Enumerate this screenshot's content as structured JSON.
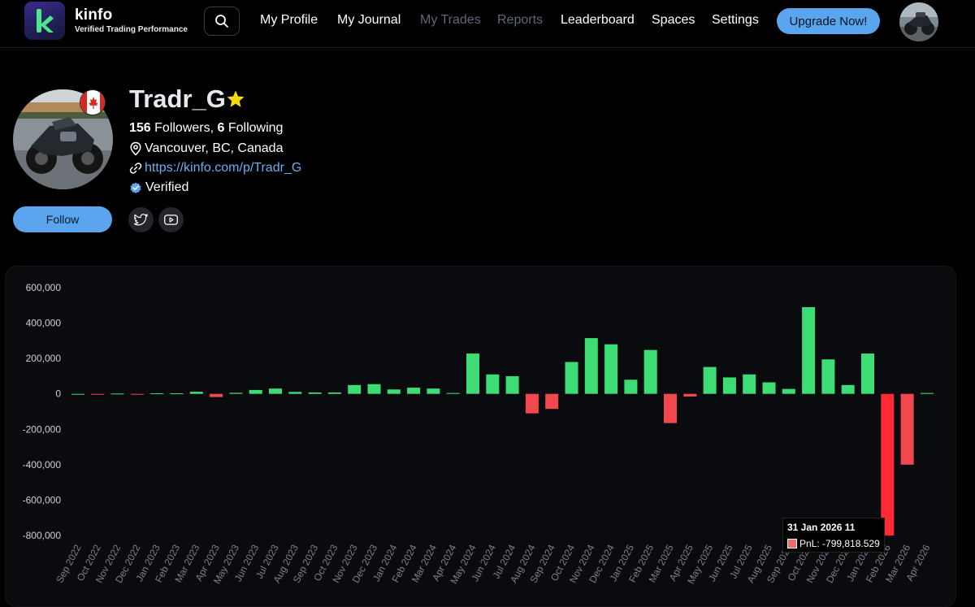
{
  "brand": {
    "name": "kinfo",
    "tagline": "Verified Trading Performance"
  },
  "nav": {
    "items": [
      {
        "label": "My Profile",
        "dim": false
      },
      {
        "label": "My Journal",
        "dim": false
      },
      {
        "label": "My Trades",
        "dim": true
      },
      {
        "label": "Reports",
        "dim": true
      },
      {
        "label": "Leaderboard",
        "dim": false
      },
      {
        "label": "Spaces",
        "dim": false
      },
      {
        "label": "Settings",
        "dim": false
      }
    ],
    "upgrade_label": "Upgrade Now!"
  },
  "profile": {
    "username": "Tradr_G",
    "followers_count": "156",
    "followers_label": " Followers, ",
    "following_count": "6",
    "following_label": " Following",
    "location": "Vancouver, BC, Canada",
    "url": "https://kinfo.com/p/Tradr_G",
    "verified_label": "Verified",
    "follow_label": "Follow"
  },
  "colors": {
    "accent": "#5aa5ee",
    "positive": "#3ddc75",
    "negative": "#f1474f",
    "highlight_negative": "#ff2a34"
  },
  "icons": [
    "search-icon",
    "star-icon",
    "location-pin-icon",
    "link-icon",
    "verified-badge-icon",
    "twitter-icon",
    "youtube-icon",
    "canada-flag-icon"
  ],
  "tooltip": {
    "title": "31 Jan 2026 11",
    "text": "PnL: -799,818.529"
  },
  "chart_data": {
    "type": "bar",
    "series": [
      {
        "name": "PnL"
      }
    ],
    "ylim": [
      -800000,
      600000
    ],
    "yticks": [
      600000,
      400000,
      200000,
      0,
      -200000,
      -400000,
      -600000,
      -800000
    ],
    "ytick_labels": [
      "600,000",
      "400,000",
      "200,000",
      "0",
      "-200,000",
      "-400,000",
      "-600,000",
      "-800,000"
    ],
    "highlighted": "Feb 2026",
    "categories": [
      "Sep 2022",
      "Oct 2022",
      "Nov 2022",
      "Dec 2022",
      "Jan 2023",
      "Feb 2023",
      "Mar 2023",
      "Apr 2023",
      "May 2023",
      "Jun 2023",
      "Jul 2023",
      "Aug 2023",
      "Sep 2023",
      "Oct 2023",
      "Nov 2023",
      "Dec 2023",
      "Jan 2024",
      "Feb 2024",
      "Mar 2024",
      "Apr 2024",
      "May 2024",
      "Jun 2024",
      "Jul 2024",
      "Aug 2024",
      "Sep 2024",
      "Oct 2024",
      "Nov 2024",
      "Dec 2024",
      "Jan 2025",
      "Feb 2025",
      "Mar 2025",
      "Apr 2025",
      "May 2025",
      "Jun 2025",
      "Jul 2025",
      "Aug 2025",
      "Sep 2025",
      "Oct 2025",
      "Nov 2025",
      "Dec 2025",
      "Jan 2026",
      "Feb 2026",
      "Mar 2026",
      "Apr 2026"
    ],
    "values": [
      0,
      -3000,
      2000,
      -2000,
      3000,
      3000,
      12000,
      -18000,
      6000,
      22000,
      30000,
      11000,
      8000,
      8000,
      50000,
      55000,
      25000,
      35000,
      30000,
      5000,
      228000,
      110000,
      100000,
      -110000,
      -85000,
      180000,
      315000,
      280000,
      80000,
      248000,
      -165000,
      -15000,
      152000,
      93000,
      110000,
      65000,
      28000,
      490000,
      195000,
      50000,
      228000,
      -799819,
      -400000,
      5000
    ]
  }
}
